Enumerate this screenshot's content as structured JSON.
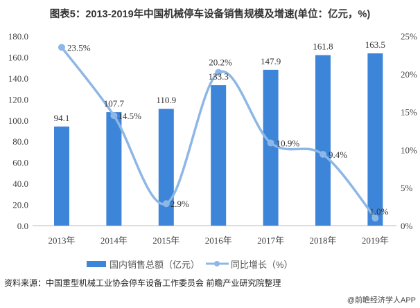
{
  "chart_data": {
    "type": "bar+line",
    "title": "图表5：2013-2019年中国机械停车设备销售规模及增速(单位：亿元，%)",
    "categories": [
      "2013年",
      "2014年",
      "2015年",
      "2016年",
      "2017年",
      "2018年",
      "2019年"
    ],
    "series": [
      {
        "name": "国内销售总额（亿元）",
        "type": "bar",
        "axis": "left",
        "values": [
          94.1,
          107.7,
          110.9,
          133.3,
          147.9,
          161.8,
          163.5
        ],
        "labels": [
          "94.1",
          "107.7",
          "110.9",
          "133.3",
          "147.9",
          "161.8",
          "163.5"
        ],
        "color": "#3d85d8"
      },
      {
        "name": "同比增长（%）",
        "type": "line",
        "axis": "right",
        "smooth": true,
        "values": [
          23.5,
          14.5,
          2.9,
          20.2,
          10.9,
          9.4,
          1.0
        ],
        "labels": [
          "23.5%",
          "14.5%",
          "2.9%",
          "20.2%",
          "10.9%",
          "9.4%",
          "1.0%"
        ],
        "color": "#8db7e6"
      }
    ],
    "y_left": {
      "range": [
        0,
        180
      ],
      "ticks": [
        "0.0",
        "20.0",
        "40.0",
        "60.0",
        "80.0",
        "100.0",
        "120.0",
        "140.0",
        "160.0",
        "180.0"
      ]
    },
    "y_right": {
      "range": [
        0,
        25
      ],
      "ticks": [
        "0%",
        "5%",
        "10%",
        "15%",
        "20%",
        "25%"
      ]
    },
    "grid": false,
    "legend": "bottom"
  },
  "source": "资料来源：中国重型机械工业协会停车设备工作委员会 前瞻产业研究院整理",
  "credit": "@前瞻经济学人APP"
}
